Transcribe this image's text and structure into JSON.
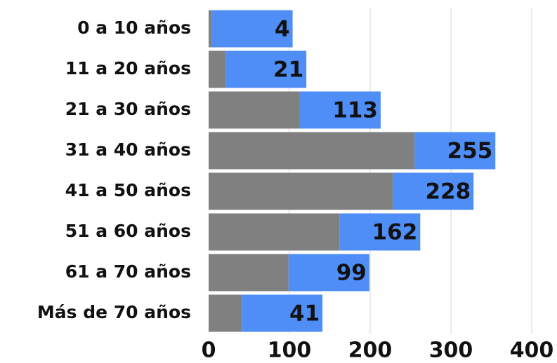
{
  "chart_data": {
    "type": "stacked-barh",
    "categories": [
      "0 a 10 años",
      "11 a 20 años",
      "21 a 30 años",
      "31 a 40 años",
      "41 a 50 años",
      "51 a 60 años",
      "61 a 70 años",
      "Más de 70 años"
    ],
    "series": [
      {
        "color": "#808080",
        "values": [
          4,
          21,
          113,
          255,
          228,
          162,
          99,
          41
        ]
      },
      {
        "color": "#4f8ef7",
        "values": [
          100,
          100,
          100,
          100,
          100,
          100,
          100,
          100
        ]
      }
    ],
    "xlim": [
      0,
      400
    ],
    "xticks": [
      0,
      100,
      200,
      300,
      400
    ],
    "grid": true
  }
}
